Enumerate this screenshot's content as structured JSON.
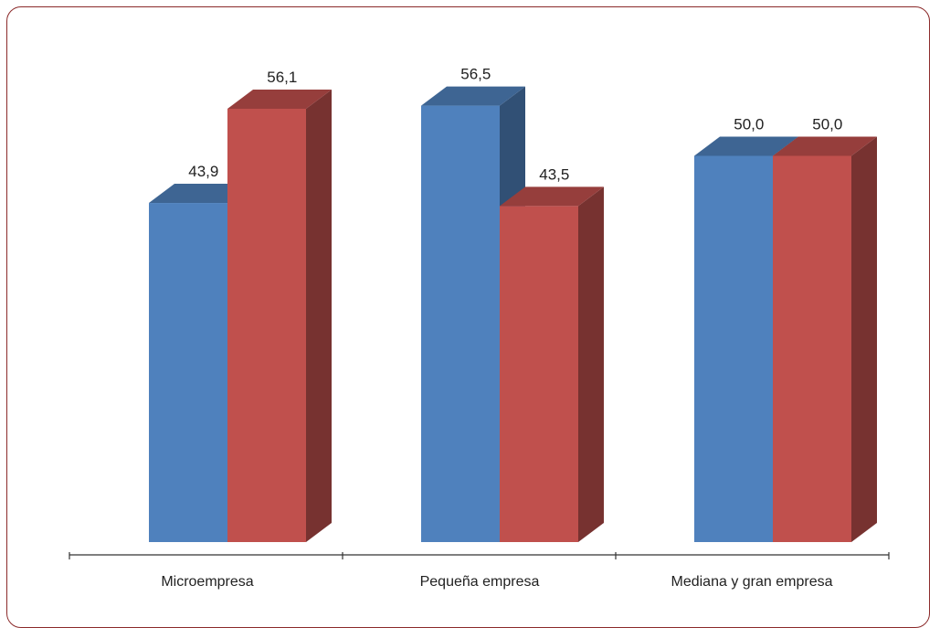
{
  "chart_data": {
    "type": "bar",
    "categories": [
      "Microempresa",
      "Pequeña empresa",
      "Mediana y gran empresa"
    ],
    "series": [
      {
        "values": [
          43.9,
          56.5,
          50.0
        ],
        "labels": [
          "43,9",
          "56,5",
          "50,0"
        ],
        "color": "#4f81bd"
      },
      {
        "values": [
          56.1,
          43.5,
          50.0
        ],
        "labels": [
          "56,1",
          "43,5",
          "50,0"
        ],
        "color": "#c0504d"
      }
    ],
    "ylim": [
      0,
      60
    ],
    "grid": false,
    "legend": "none",
    "style": "3d-column"
  }
}
